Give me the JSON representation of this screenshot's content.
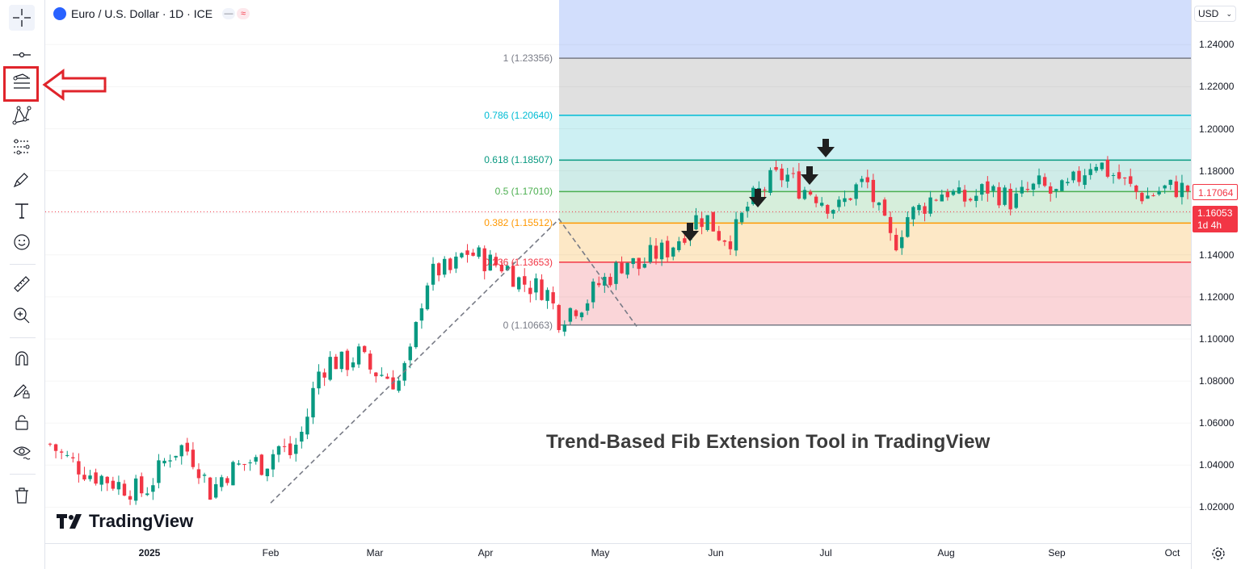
{
  "symbol": {
    "title": "Euro / U.S. Dollar · 1D · ICE",
    "pill_1": "—",
    "pill_2": "≈"
  },
  "currency_select": {
    "label": "USD"
  },
  "toolbar": {
    "items": [
      {
        "name": "crosshair-icon"
      },
      {
        "name": "trend-line-icon"
      },
      {
        "name": "fib-extension-icon",
        "highlighted": true
      },
      {
        "name": "patterns-icon"
      },
      {
        "name": "projection-icon"
      },
      {
        "name": "brush-icon"
      },
      {
        "name": "text-icon"
      },
      {
        "name": "emoji-icon"
      },
      {
        "name": "ruler-icon"
      },
      {
        "name": "zoom-in-icon"
      },
      {
        "name": "magnet-icon"
      },
      {
        "name": "lock-drawing-icon"
      },
      {
        "name": "unlock-icon"
      },
      {
        "name": "eye-icon"
      },
      {
        "name": "trash-icon"
      }
    ],
    "highlight_color": "#e0242b"
  },
  "price_axis": {
    "ticks": [
      "1.24000",
      "1.22000",
      "1.20000",
      "1.18000",
      "1.16000",
      "1.14000",
      "1.12000",
      "1.10000",
      "1.08000",
      "1.06000",
      "1.04000",
      "1.02000"
    ],
    "current_price": "1.17064",
    "last_price": "1.16053",
    "countdown": "1d 4h"
  },
  "time_axis": {
    "ticks": [
      {
        "label": "2025",
        "bold": true
      },
      {
        "label": "Feb"
      },
      {
        "label": "Mar"
      },
      {
        "label": "Apr"
      },
      {
        "label": "May"
      },
      {
        "label": "Jun"
      },
      {
        "label": "Jul"
      },
      {
        "label": "Aug"
      },
      {
        "label": "Sep"
      },
      {
        "label": "Oct"
      }
    ]
  },
  "fib_levels": [
    {
      "label": "1 (1.23356)",
      "value": 1.23356,
      "color": "#787b86",
      "fill": "#e0e0e0"
    },
    {
      "label": "0.786 (1.20640)",
      "value": 1.2064,
      "color": "#00bcd4",
      "fill": "#cdf0f3"
    },
    {
      "label": "0.618 (1.18507)",
      "value": 1.18507,
      "color": "#089981",
      "fill": "#cfece8"
    },
    {
      "label": "0.5 (1.17010)",
      "value": 1.1701,
      "color": "#4caf50",
      "fill": "#d6eedb"
    },
    {
      "label": "0.382 (1.15512)",
      "value": 1.15512,
      "color": "#ff9800",
      "fill": "#fde8c6"
    },
    {
      "label": "0.236 (1.13653)",
      "value": 1.13653,
      "color": "#f23645",
      "fill": "#fad5d8"
    },
    {
      "label": "0 (1.10663)",
      "value": 1.10663,
      "color": "#787b86",
      "fill": null
    }
  ],
  "fib_top_fill": "#d2defc",
  "title_annotation": "Trend-Based Fib Extension Tool in TradingView",
  "brand": {
    "name": "TradingView"
  },
  "colors": {
    "up": "#089981",
    "down": "#f23645"
  },
  "chart_data": {
    "type": "candlestick",
    "closes_sampled": [
      1.05,
      1.044,
      1.04,
      1.036,
      1.034,
      1.031,
      1.029,
      1.027,
      1.036,
      1.046,
      1.049,
      1.041,
      1.027,
      1.036,
      1.039,
      1.042,
      1.04,
      1.049,
      1.045,
      1.058,
      1.084,
      1.09,
      1.088,
      1.093,
      1.085,
      1.083,
      1.079,
      1.093,
      1.127,
      1.133,
      1.132,
      1.142,
      1.139,
      1.136,
      1.135,
      1.128,
      1.125,
      1.124,
      1.11,
      1.115,
      1.118,
      1.126,
      1.131,
      1.138,
      1.134,
      1.14,
      1.142,
      1.148,
      1.157,
      1.158,
      1.15,
      1.148,
      1.162,
      1.17,
      1.176,
      1.178,
      1.172,
      1.17,
      1.165,
      1.162,
      1.171,
      1.175,
      1.158,
      1.144,
      1.158,
      1.162,
      1.168,
      1.171,
      1.166,
      1.167,
      1.172,
      1.169,
      1.165,
      1.17,
      1.173,
      1.168,
      1.171,
      1.178,
      1.186,
      1.18,
      1.176,
      1.17,
      1.168,
      1.171,
      1.172,
      1.171
    ],
    "ylim": [
      1.01,
      1.25
    ],
    "last": 1.16053
  }
}
